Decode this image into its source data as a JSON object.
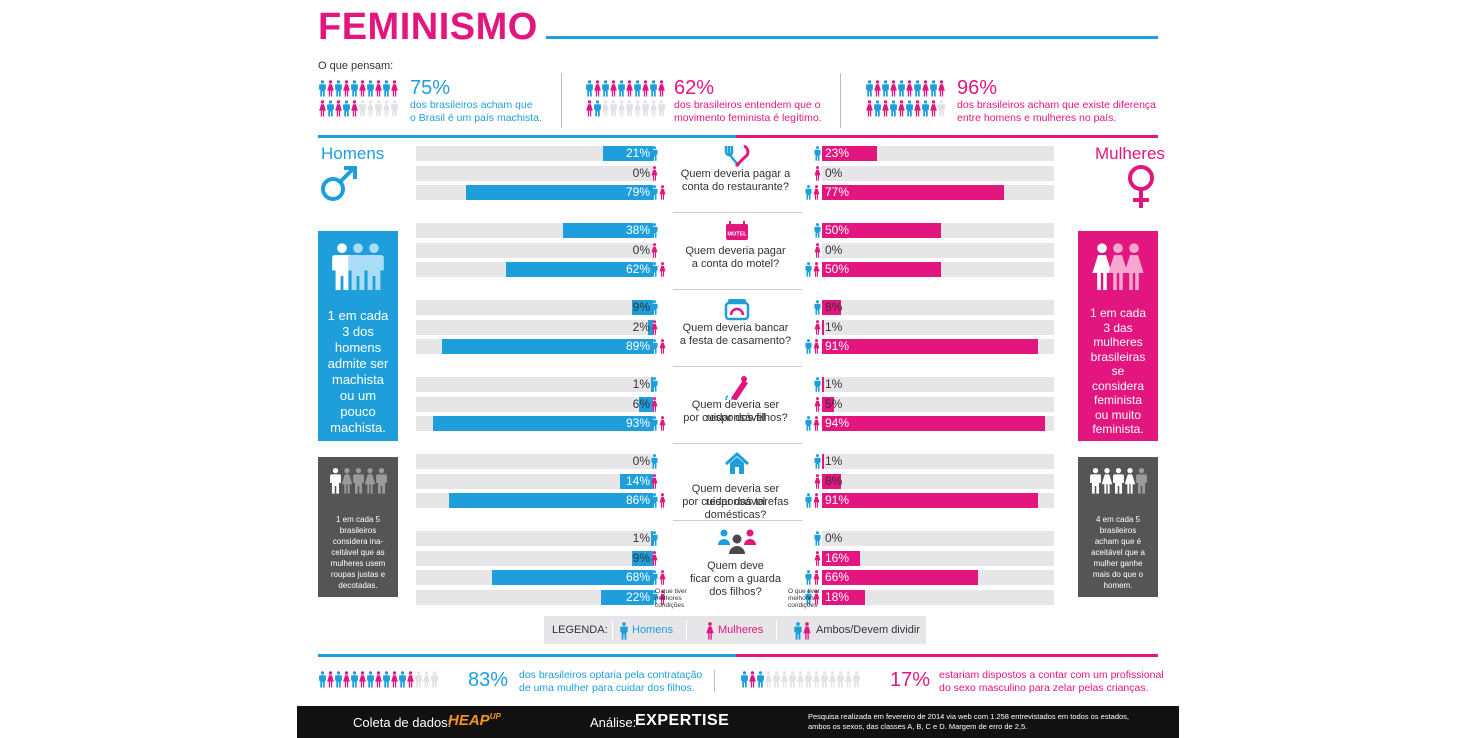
{
  "title": "FEMINISMO",
  "what_they_think": "O que pensam:",
  "top_stats": [
    {
      "percent": "75%",
      "text": [
        "dos brasileiros acham que",
        "o Brasil é um país machista."
      ],
      "filled": 0.75
    },
    {
      "percent": "62%",
      "text": [
        "dos brasileiros entendem que o",
        "movimento feminista é legítimo."
      ],
      "filled": 0.62
    },
    {
      "percent": "96%",
      "text": [
        "dos brasileiros acham que existe diferença",
        "entre homens e mulheres no país."
      ],
      "filled": 0.96
    }
  ],
  "men_label": "Homens",
  "women_label": "Mulheres",
  "men_panel": {
    "text": [
      "1 em cada",
      "3 dos",
      "homens",
      "admite ser",
      "machista",
      "ou um",
      "pouco",
      "machista."
    ]
  },
  "women_panel": {
    "text": [
      "1 em cada",
      "3 das",
      "mulheres",
      "brasileiras",
      "se",
      "considera",
      "feminista",
      "ou muito",
      "feminista."
    ]
  },
  "men_gray_panel": {
    "text": [
      "1 em cada 5",
      "brasileiros",
      "considera ina-",
      "ceitável que as",
      "mulheres usem",
      "roupas justas e",
      "decotadas."
    ]
  },
  "women_gray_panel": {
    "text": [
      "4 em cada 5",
      "brasileiros",
      "acham que é",
      "aceitável que a",
      "mulher ganhe",
      "mais do que o",
      "homem."
    ]
  },
  "chart_data": {
    "type": "bar",
    "series_names": [
      "Homens",
      "Mulheres"
    ],
    "row_types": [
      "Homens",
      "Mulheres",
      "Ambos/Devem dividir",
      "O que tiver melhores condições"
    ],
    "groups": [
      {
        "question": [
          "Quem deveria pagar a",
          "conta do restaurante?"
        ],
        "icon": "fork-knife-icon",
        "rows": [
          {
            "who": "Homens",
            "men": 21,
            "women": 23
          },
          {
            "who": "Mulheres",
            "men": 0,
            "women": 0
          },
          {
            "who": "Ambos/Devem dividir",
            "men": 79,
            "women": 77
          }
        ]
      },
      {
        "question": [
          "Quem deveria pagar",
          "a conta do motel?"
        ],
        "icon": "motel-sign-icon",
        "icon_text": "MOTEL",
        "rows": [
          {
            "who": "Homens",
            "men": 38,
            "women": 50
          },
          {
            "who": "Mulheres",
            "men": 0,
            "women": 0
          },
          {
            "who": "Ambos/Devem dividir",
            "men": 62,
            "women": 50
          }
        ]
      },
      {
        "question": [
          "Quem deveria bancar",
          "a festa de casamento?"
        ],
        "icon": "ring-box-icon",
        "rows": [
          {
            "who": "Homens",
            "men": 9,
            "women": 8
          },
          {
            "who": "Mulheres",
            "men": 2,
            "women": 1
          },
          {
            "who": "Ambos/Devem dividir",
            "men": 89,
            "women": 91
          }
        ]
      },
      {
        "question": [
          "Quem deveria ser responsável",
          "por cuidar dos filhos?"
        ],
        "icon": "baby-bottle-icon",
        "rows": [
          {
            "who": "Homens",
            "men": 1,
            "women": 1
          },
          {
            "who": "Mulheres",
            "men": 6,
            "women": 5
          },
          {
            "who": "Ambos/Devem dividir",
            "men": 93,
            "women": 94
          }
        ]
      },
      {
        "question": [
          "Quem deveria ser responsável",
          "por cuidar das tarefas",
          "domésticas?"
        ],
        "icon": "house-icon",
        "rows": [
          {
            "who": "Homens",
            "men": 0,
            "women": 1
          },
          {
            "who": "Mulheres",
            "men": 14,
            "women": 8
          },
          {
            "who": "Ambos/Devem dividir",
            "men": 86,
            "women": 91
          }
        ]
      },
      {
        "question": [
          "Quem deve",
          "ficar com a guarda",
          "dos filhos?"
        ],
        "icon": "family-icon",
        "rows": [
          {
            "who": "Homens",
            "men": 1,
            "women": 0
          },
          {
            "who": "Mulheres",
            "men": 9,
            "women": 16
          },
          {
            "who": "Ambos/Devem dividir",
            "men": 68,
            "women": 66
          },
          {
            "who": "O que tiver melhores condições",
            "men": 22,
            "women": 18
          }
        ]
      }
    ],
    "xlim": [
      0,
      100
    ]
  },
  "best_conditions_note": [
    "O que tiver",
    "melhores",
    "condições"
  ],
  "legend": {
    "title": "LEGENDA:",
    "items": [
      "Homens",
      "Mulheres",
      "Ambos/Devem dividir"
    ]
  },
  "bottom_stats": [
    {
      "percent": "83%",
      "text": [
        "dos brasileiros optaria pela contratação",
        "de uma mulher para cuidar dos filhos."
      ],
      "filled": 0.83
    },
    {
      "percent": "17%",
      "text": [
        "estariam dispostos a contar com um profissional",
        "do sexo masculino para zelar pelas crianças."
      ],
      "filled": 0.17
    }
  ],
  "footer": {
    "data_label": "Coleta de dados:",
    "data_brand": "HEAP",
    "data_brand_sup": "UP",
    "analysis_label": "Análise:",
    "analysis_brand": "EXPERTISE",
    "note": [
      "Pesquisa realizada em fevereiro de 2014 via web com 1.258 entrevistados em todos os estados,",
      "ambos os sexos, das classes A, B, C e D. Margem de erro de 2,5."
    ]
  },
  "colors": {
    "men": "#1e9fdc",
    "women": "#e3157f",
    "gray": "#9a9a9a",
    "bar_bg": "#e6e6e8",
    "dark_panel": "#555555"
  }
}
